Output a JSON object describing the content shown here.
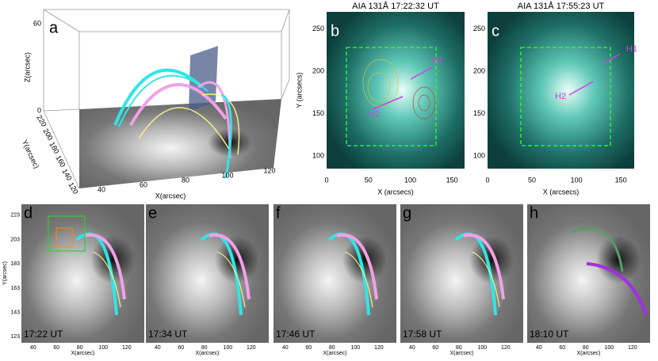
{
  "panel_a": {
    "label": "a",
    "zlabel": "Z(arcsec)",
    "ylabel": "Y(arcsec)",
    "xlabel": "X(arcsec)",
    "zticks": [
      0,
      60
    ],
    "yticks": [
      220,
      200,
      180,
      160,
      140,
      120
    ],
    "xticks": [
      40,
      60,
      80,
      100,
      120
    ]
  },
  "panel_b": {
    "label": "b",
    "title": "AIA 131Å 17:22:32 UT",
    "ylabel": "Y (arcsecs)",
    "xlabel": "X (arcsecs)",
    "xticks": [
      0,
      50,
      100,
      150
    ],
    "yticks": [
      100,
      150,
      200,
      250
    ],
    "xlim": [
      0,
      165
    ],
    "ylim": [
      85,
      270
    ],
    "arrows": [
      "H1",
      "H2"
    ]
  },
  "panel_c": {
    "label": "c",
    "title": "AIA 131Å 17:55:23 UT",
    "xlabel": "X (arcsecs)",
    "xticks": [
      0,
      50,
      100,
      150
    ],
    "yticks": [
      100,
      150,
      200,
      250
    ],
    "xlim": [
      0,
      165
    ],
    "ylim": [
      85,
      270
    ],
    "arrows": [
      "H1",
      "H2"
    ]
  },
  "bottom_axes": {
    "xlabel": "X(arcsec)",
    "ylabel": "Y(arcsec)",
    "xticks": [
      40,
      60,
      80,
      100,
      120
    ],
    "yticks": [
      123,
      143,
      163,
      183,
      203,
      223
    ],
    "xlim": [
      30,
      135
    ],
    "ylim": [
      118,
      232
    ]
  },
  "bottom_panels": [
    {
      "label": "d",
      "time": "17:22 UT"
    },
    {
      "label": "e",
      "time": "17:34 UT"
    },
    {
      "label": "f",
      "time": "17:46 UT"
    },
    {
      "label": "g",
      "time": "17:58 UT"
    },
    {
      "label": "h",
      "time": "18:10 UT"
    }
  ]
}
